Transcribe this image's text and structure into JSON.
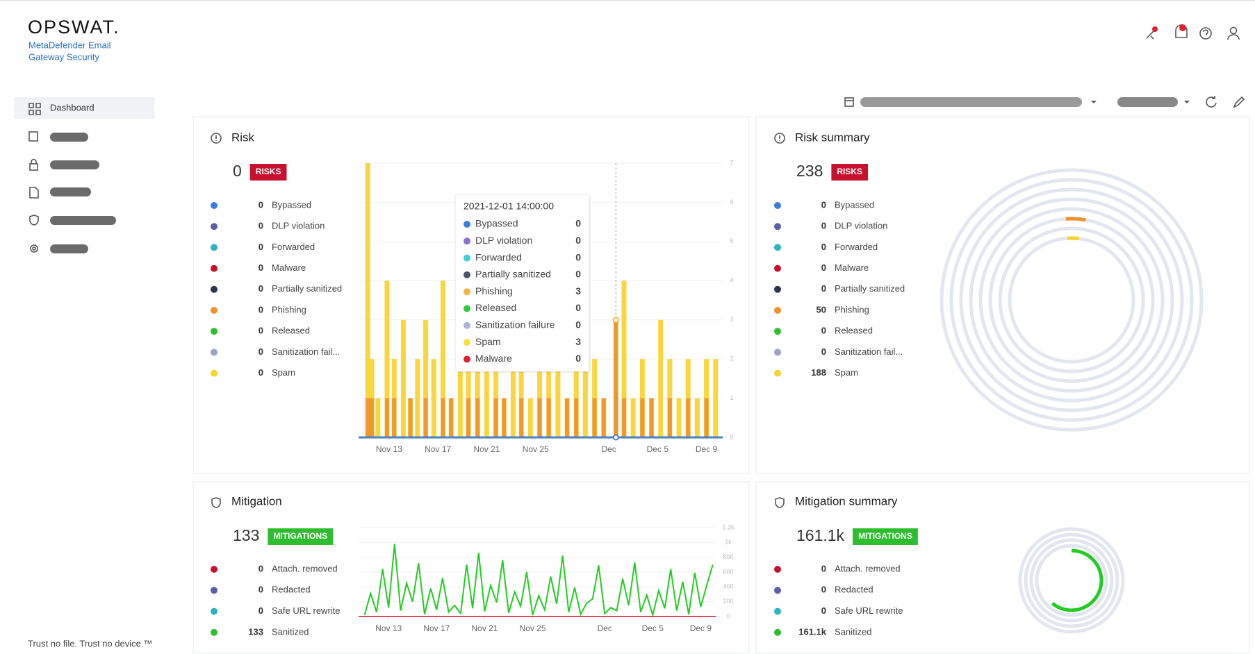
{
  "header": {
    "logo": "OPSWAT.",
    "product": [
      "MetaDefender Email",
      "Gateway Security"
    ]
  },
  "sidebar": {
    "items": [
      "Dashboard"
    ],
    "footer": "Trust no file. Trust no device.™"
  },
  "risk": {
    "title": "Risk",
    "total": 0,
    "badge": "RISKS",
    "legend": [
      {
        "label": "Bypassed",
        "value": 0,
        "color": "#3b7ddd"
      },
      {
        "label": "DLP violation",
        "value": 0,
        "color": "#5c5fa8"
      },
      {
        "label": "Forwarded",
        "value": 0,
        "color": "#2bb5c0"
      },
      {
        "label": "Malware",
        "value": 0,
        "color": "#c8102e"
      },
      {
        "label": "Partially sanitized",
        "value": 0,
        "color": "#2a3550"
      },
      {
        "label": "Phishing",
        "value": 0,
        "color": "#f0922b"
      },
      {
        "label": "Released",
        "value": 0,
        "color": "#2ebd2e"
      },
      {
        "label": "Sanitization fail...",
        "value": 0,
        "color": "#9aa3c2"
      },
      {
        "label": "Spam",
        "value": 0,
        "color": "#f8d22e"
      }
    ],
    "chart_data": {
      "type": "bar",
      "x": [
        "2021-11-11T06:00",
        "2021-11-11T14:00",
        "2021-11-12T02:00",
        "2021-11-12T20:00",
        "2021-11-13T10:00",
        "2021-11-14T04:00",
        "2021-11-14T18:00",
        "2021-11-15T08:00",
        "2021-11-16T00:00",
        "2021-11-16T16:00",
        "2021-11-17T10:00",
        "2021-11-18T02:00",
        "2021-11-18T20:00",
        "2021-11-19T12:00",
        "2021-11-20T06:00",
        "2021-11-21T00:00",
        "2021-11-21T18:00",
        "2021-11-22T10:00",
        "2021-11-23T04:00",
        "2021-11-23T20:00",
        "2021-11-24T14:00",
        "2021-11-25T08:00",
        "2021-11-26T02:00",
        "2021-11-26T20:00",
        "2021-11-27T14:00",
        "2021-11-28T08:00",
        "2021-11-29T02:00",
        "2021-11-29T20:00",
        "2021-11-30T14:00",
        "2021-12-01T14:00",
        "2021-12-02T06:00",
        "2021-12-03T00:00",
        "2021-12-03T18:00",
        "2021-12-04T12:00",
        "2021-12-05T06:00",
        "2021-12-06T00:00",
        "2021-12-06T18:00",
        "2021-12-07T12:00",
        "2021-12-08T06:00",
        "2021-12-09T00:00",
        "2021-12-09T18:00"
      ],
      "series": [
        {
          "color": "#f8d22e",
          "values": [
            7,
            2,
            1,
            4,
            2,
            3,
            1,
            2,
            3,
            2,
            4,
            1,
            2,
            3,
            2,
            2,
            3,
            1,
            2,
            4,
            1,
            2,
            3,
            2,
            1,
            2,
            3,
            2,
            1,
            3,
            4,
            1,
            2,
            1,
            3,
            2,
            1,
            2,
            1,
            2,
            2
          ]
        },
        {
          "color": "#f0922b",
          "values": [
            1,
            1,
            0,
            1,
            1,
            0,
            1,
            0,
            1,
            0,
            1,
            1,
            0,
            1,
            1,
            0,
            1,
            1,
            0,
            1,
            0,
            1,
            1,
            0,
            1,
            1,
            0,
            1,
            1,
            3,
            1,
            0,
            1,
            1,
            0,
            1,
            0,
            1,
            0,
            1,
            0
          ]
        }
      ],
      "xlim": [
        "2021-11-10T12:00",
        "2021-12-10T08:00"
      ],
      "xticks": [
        {
          "value": "2021-11-13T00:00",
          "label": "Nov 13"
        },
        {
          "value": "2021-11-17T00:00",
          "label": "Nov 17"
        },
        {
          "value": "2021-11-21T00:00",
          "label": "Nov 21"
        },
        {
          "value": "2021-11-25T00:00",
          "label": "Nov 25"
        },
        {
          "value": "2021-12-01T00:00",
          "label": "Dec"
        },
        {
          "value": "2021-12-05T00:00",
          "label": "Dec 5"
        },
        {
          "value": "2021-12-09T00:00",
          "label": "Dec 9"
        }
      ],
      "ylim": [
        0,
        7
      ],
      "yticks": [
        0,
        1,
        2,
        3,
        4,
        5,
        6,
        7
      ],
      "grid": true
    },
    "tooltip": {
      "time": "2021-12-01 14:00:00",
      "rows": [
        {
          "label": "Bypassed",
          "value": 0,
          "color": "#3b7ddd"
        },
        {
          "label": "DLP violation",
          "value": 0,
          "color": "#8a6fd1"
        },
        {
          "label": "Forwarded",
          "value": 0,
          "color": "#3fd0d8"
        },
        {
          "label": "Partially sanitized",
          "value": 0,
          "color": "#4a5468"
        },
        {
          "label": "Phishing",
          "value": 3,
          "color": "#f5b342"
        },
        {
          "label": "Released",
          "value": 0,
          "color": "#2ecc40"
        },
        {
          "label": "Sanitization failure",
          "value": 0,
          "color": "#aab4d4"
        },
        {
          "label": "Spam",
          "value": 3,
          "color": "#f8e03a"
        },
        {
          "label": "Malware",
          "value": 0,
          "color": "#e0202e"
        }
      ]
    }
  },
  "risk_summary": {
    "title": "Risk summary",
    "total": 238,
    "badge": "RISKS",
    "legend": [
      {
        "label": "Bypassed",
        "value": 0,
        "color": "#3b7ddd"
      },
      {
        "label": "DLP violation",
        "value": 0,
        "color": "#5c5fa8"
      },
      {
        "label": "Forwarded",
        "value": 0,
        "color": "#2bb5c0"
      },
      {
        "label": "Malware",
        "value": 0,
        "color": "#c8102e"
      },
      {
        "label": "Partially sanitized",
        "value": 0,
        "color": "#2a3550"
      },
      {
        "label": "Phishing",
        "value": 50,
        "color": "#f0922b"
      },
      {
        "label": "Released",
        "value": 0,
        "color": "#2ebd2e"
      },
      {
        "label": "Sanitization fail...",
        "value": 0,
        "color": "#9aa3c2"
      },
      {
        "label": "Spam",
        "value": 188,
        "color": "#f8d22e"
      }
    ]
  },
  "mitigation": {
    "title": "Mitigation",
    "total": 133,
    "badge": "MITIGATIONS",
    "legend": [
      {
        "label": "Attach. removed",
        "value": 0,
        "color": "#c8102e"
      },
      {
        "label": "Redacted",
        "value": 0,
        "color": "#5c5fa8"
      },
      {
        "label": "Safe URL rewrite",
        "value": 0,
        "color": "#2bb5c0"
      },
      {
        "label": "Sanitized",
        "value": 133,
        "color": "#2ebd2e"
      }
    ],
    "chart_data": {
      "type": "line",
      "x": [
        "2021-11-11T00:00",
        "2021-11-11T12:00",
        "2021-11-12T00:00",
        "2021-11-12T12:00",
        "2021-11-13T00:00",
        "2021-11-13T12:00",
        "2021-11-14T00:00",
        "2021-11-14T12:00",
        "2021-11-15T00:00",
        "2021-11-15T12:00",
        "2021-11-16T00:00",
        "2021-11-16T12:00",
        "2021-11-17T00:00",
        "2021-11-17T12:00",
        "2021-11-18T00:00",
        "2021-11-18T12:00",
        "2021-11-19T00:00",
        "2021-11-19T12:00",
        "2021-11-20T00:00",
        "2021-11-20T12:00",
        "2021-11-21T00:00",
        "2021-11-21T12:00",
        "2021-11-22T00:00",
        "2021-11-22T12:00",
        "2021-11-23T00:00",
        "2021-11-23T12:00",
        "2021-11-24T00:00",
        "2021-11-24T12:00",
        "2021-11-25T00:00",
        "2021-11-25T12:00",
        "2021-11-26T00:00",
        "2021-11-26T12:00",
        "2021-11-27T00:00",
        "2021-11-27T12:00",
        "2021-11-28T00:00",
        "2021-11-28T12:00",
        "2021-11-29T00:00",
        "2021-11-29T12:00",
        "2021-11-30T00:00",
        "2021-11-30T12:00",
        "2021-12-01T00:00",
        "2021-12-01T12:00",
        "2021-12-02T00:00",
        "2021-12-02T12:00",
        "2021-12-03T00:00",
        "2021-12-03T12:00",
        "2021-12-04T00:00",
        "2021-12-04T12:00",
        "2021-12-05T00:00",
        "2021-12-05T12:00",
        "2021-12-06T00:00",
        "2021-12-06T12:00",
        "2021-12-07T00:00",
        "2021-12-07T12:00",
        "2021-12-08T00:00",
        "2021-12-08T12:00",
        "2021-12-09T00:00",
        "2021-12-09T12:00",
        "2021-12-10T00:00"
      ],
      "series": [
        {
          "color": "#22cc22",
          "values": [
            20,
            310,
            60,
            640,
            120,
            980,
            80,
            450,
            200,
            720,
            30,
            380,
            90,
            520,
            60,
            150,
            40,
            700,
            110,
            860,
            70,
            420,
            190,
            760,
            50,
            330,
            140,
            600,
            20,
            280,
            90,
            540,
            170,
            820,
            60,
            390,
            30,
            180,
            240,
            690,
            40,
            120,
            80,
            510,
            150,
            730,
            60,
            290,
            20,
            350,
            110,
            640,
            80,
            470,
            30,
            590,
            130,
            420,
            700
          ]
        }
      ],
      "xlim": [
        "2021-11-10T12:00",
        "2021-12-10T06:00"
      ],
      "xticks": [
        {
          "value": "2021-11-13T00:00",
          "label": "Nov 13"
        },
        {
          "value": "2021-11-17T00:00",
          "label": "Nov 17"
        },
        {
          "value": "2021-11-21T00:00",
          "label": "Nov 21"
        },
        {
          "value": "2021-11-25T00:00",
          "label": "Nov 25"
        },
        {
          "value": "2021-12-01T00:00",
          "label": "Dec"
        },
        {
          "value": "2021-12-05T00:00",
          "label": "Dec 5"
        },
        {
          "value": "2021-12-09T00:00",
          "label": "Dec 9"
        }
      ],
      "ylim": [
        0,
        1200
      ],
      "yticks": [
        0,
        200,
        400,
        600,
        800,
        {
          "value": 1000,
          "label": "1k"
        },
        {
          "value": 1200,
          "label": "1.2k"
        }
      ],
      "grid": true
    }
  },
  "mitigation_summary": {
    "title": "Mitigation summary",
    "total": "161.1k",
    "badge": "MITIGATIONS",
    "legend": [
      {
        "label": "Attach. removed",
        "value": 0,
        "color": "#c8102e"
      },
      {
        "label": "Redacted",
        "value": 0,
        "color": "#5c5fa8"
      },
      {
        "label": "Safe URL rewrite",
        "value": 0,
        "color": "#2bb5c0"
      },
      {
        "label": "Sanitized",
        "value": "161.1k",
        "color": "#2ebd2e"
      }
    ]
  }
}
